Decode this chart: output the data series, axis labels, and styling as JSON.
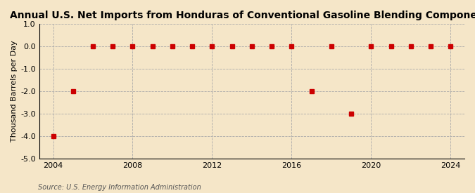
{
  "title": "Annual U.S. Net Imports from Honduras of Conventional Gasoline Blending Components",
  "ylabel": "Thousand Barrels per Day",
  "source": "Source: U.S. Energy Information Administration",
  "background_color": "#f5e6c8",
  "years": [
    2004,
    2005,
    2006,
    2007,
    2008,
    2009,
    2010,
    2011,
    2012,
    2013,
    2014,
    2015,
    2016,
    2017,
    2018,
    2019,
    2020,
    2021,
    2022,
    2023,
    2024
  ],
  "values": [
    -4.0,
    -2.0,
    0.0,
    0.0,
    0.0,
    0.0,
    0.0,
    0.0,
    0.0,
    0.0,
    0.0,
    0.0,
    0.0,
    -2.0,
    0.0,
    -3.0,
    0.0,
    0.0,
    0.0,
    0.0,
    0.0
  ],
  "marker_color": "#cc0000",
  "marker_size": 4,
  "ylim": [
    -5.0,
    1.0
  ],
  "yticks": [
    -5.0,
    -4.0,
    -3.0,
    -2.0,
    -1.0,
    0.0,
    1.0
  ],
  "xlim": [
    2003.3,
    2024.7
  ],
  "xticks": [
    2004,
    2008,
    2012,
    2016,
    2020,
    2024
  ],
  "grid_color": "#aaaaaa",
  "grid_linestyle": "--",
  "title_fontsize": 10,
  "label_fontsize": 8,
  "tick_fontsize": 8,
  "source_fontsize": 7
}
